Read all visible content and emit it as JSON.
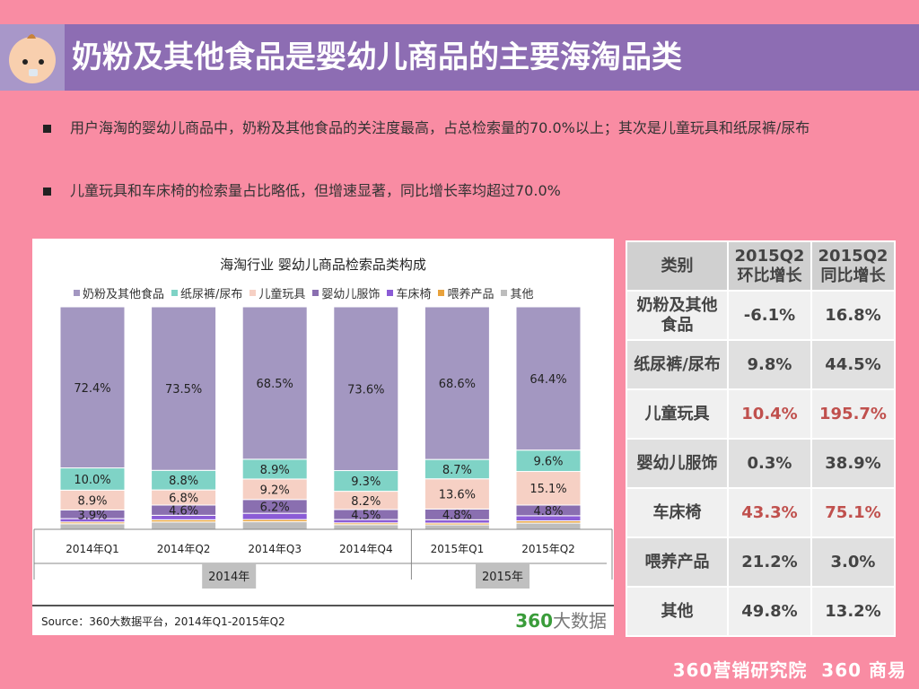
{
  "header": {
    "title": "奶粉及其他食品是婴幼儿商品的主要海淘品类",
    "icon": "baby-face-icon"
  },
  "bullets": [
    "用户海淘的婴幼儿商品中，奶粉及其他食品的关注度最高，占总检索量的70.0%以上；其次是儿童玩具和纸尿裤/尿布",
    "儿童玩具和车床椅的检索量占比略低，但增速显著，同比增长率均超过70.0%"
  ],
  "chart_data": {
    "type": "bar",
    "stacked": true,
    "title": "海淘行业 婴幼儿商品检索品类构成",
    "categories": [
      "2014年Q1",
      "2014年Q2",
      "2014年Q3",
      "2014年Q4",
      "2015年Q1",
      "2015年Q2"
    ],
    "groups": [
      {
        "label": "2014年",
        "span": 4
      },
      {
        "label": "2015年",
        "span": 2
      }
    ],
    "ylim": [
      0,
      100
    ],
    "legend": "top",
    "series": [
      {
        "name": "奶粉及其他食品",
        "color": "#a397c1",
        "values": [
          72.4,
          73.5,
          68.5,
          73.6,
          68.6,
          64.4
        ],
        "labeled": true
      },
      {
        "name": "纸尿裤/尿布",
        "color": "#7fd3c6",
        "values": [
          10.0,
          8.8,
          8.9,
          9.3,
          8.7,
          9.6
        ],
        "labeled": true
      },
      {
        "name": "儿童玩具",
        "color": "#f6d0c4",
        "values": [
          8.9,
          6.8,
          9.2,
          8.2,
          13.6,
          15.1
        ],
        "labeled": true
      },
      {
        "name": "婴幼儿服饰",
        "color": "#8a6fb0",
        "values": [
          3.9,
          4.6,
          6.2,
          4.5,
          4.8,
          4.8
        ],
        "labeled": true
      },
      {
        "name": "车床椅",
        "color": "#8b5cd6",
        "values": [
          1.5,
          2.0,
          2.8,
          1.5,
          1.5,
          2.3
        ],
        "labeled": false
      },
      {
        "name": "喂养产品",
        "color": "#e8a23c",
        "values": [
          0.8,
          1.0,
          1.0,
          0.8,
          0.8,
          1.0
        ],
        "labeled": false
      },
      {
        "name": "其他",
        "color": "#bdbdbd",
        "values": [
          2.5,
          3.3,
          3.4,
          2.1,
          2.0,
          2.8
        ],
        "labeled": false
      }
    ],
    "source": "Source：360大数据平台，2014年Q1-2015年Q2",
    "logo": "360大数据"
  },
  "table": {
    "headers": [
      "类别",
      "2015Q2\n环比增长",
      "2015Q2\n同比增长"
    ],
    "rows": [
      {
        "cat": "奶粉及其他\n食品",
        "qoq": "-6.1%",
        "yoy": "16.8%",
        "highlight": false
      },
      {
        "cat": "纸尿裤/尿布",
        "qoq": "9.8%",
        "yoy": "44.5%",
        "highlight": false
      },
      {
        "cat": "儿童玩具",
        "qoq": "10.4%",
        "yoy": "195.7%",
        "highlight": true
      },
      {
        "cat": "婴幼儿服饰",
        "qoq": "0.3%",
        "yoy": "38.9%",
        "highlight": false
      },
      {
        "cat": "车床椅",
        "qoq": "43.3%",
        "yoy": "75.1%",
        "highlight": true
      },
      {
        "cat": "喂养产品",
        "qoq": "21.2%",
        "yoy": "3.0%",
        "highlight": false
      },
      {
        "cat": "其他",
        "qoq": "49.8%",
        "yoy": "13.2%",
        "highlight": false
      }
    ],
    "highlight_color": "#c0504d"
  },
  "footer": {
    "brand": "360营销研究院",
    "brand2": "360 商易"
  }
}
